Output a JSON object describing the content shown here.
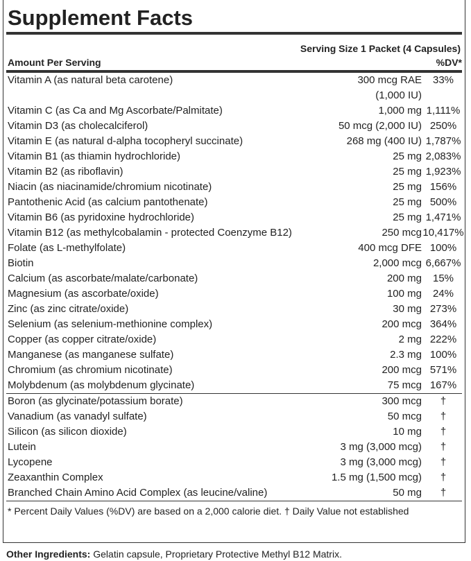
{
  "title": "Supplement Facts",
  "serving_size": "Serving Size 1 Packet (4 Capsules)",
  "header": {
    "amount_per_serving": "Amount Per Serving",
    "dv": "%DV*"
  },
  "nutrients": [
    {
      "name": "Vitamin A (as natural beta carotene)",
      "amount": "300 mcg RAE (1,000 IU)",
      "dv": "33%"
    },
    {
      "name": "Vitamin C (as Ca and Mg Ascorbate/Palmitate)",
      "amount": "1,000 mg",
      "dv": "1,111%"
    },
    {
      "name": "Vitamin D3 (as cholecalciferol)",
      "amount": "50 mcg (2,000 IU)",
      "dv": "250%"
    },
    {
      "name": "Vitamin E (as natural d-alpha tocopheryl succinate)",
      "amount": "268 mg (400 IU)",
      "dv": "1,787%"
    },
    {
      "name": "Vitamin B1 (as thiamin hydrochloride)",
      "amount": "25 mg",
      "dv": "2,083%"
    },
    {
      "name": "Vitamin B2 (as riboflavin)",
      "amount": "25 mg",
      "dv": "1,923%"
    },
    {
      "name": "Niacin (as niacinamide/chromium nicotinate)",
      "amount": "25 mg",
      "dv": "156%"
    },
    {
      "name": "Pantothenic Acid (as calcium pantothenate)",
      "amount": "25 mg",
      "dv": "500%"
    },
    {
      "name": "Vitamin B6 (as pyridoxine hydrochloride)",
      "amount": "25 mg",
      "dv": "1,471%"
    },
    {
      "name": "Vitamin B12 (as methylcobalamin - protected Coenzyme B12)",
      "amount": "250 mcg",
      "dv": "10,417%"
    },
    {
      "name": "Folate (as L-methylfolate)",
      "amount": "400 mcg DFE",
      "dv": "100%"
    },
    {
      "name": "Biotin",
      "amount": "2,000 mcg",
      "dv": "6,667%"
    },
    {
      "name": "Calcium (as ascorbate/malate/carbonate)",
      "amount": "200 mg",
      "dv": "15%"
    },
    {
      "name": "Magnesium (as ascorbate/oxide)",
      "amount": "100 mg",
      "dv": "24%"
    },
    {
      "name": "Zinc (as zinc citrate/oxide)",
      "amount": "30 mg",
      "dv": "273%"
    },
    {
      "name": "Selenium (as selenium-methionine complex)",
      "amount": "200 mcg",
      "dv": "364%"
    },
    {
      "name": "Copper (as copper citrate/oxide)",
      "amount": "2 mg",
      "dv": "222%"
    },
    {
      "name": "Manganese (as manganese sulfate)",
      "amount": "2.3 mg",
      "dv": "100%"
    },
    {
      "name": "Chromium (as chromium nicotinate)",
      "amount": "200 mcg",
      "dv": "571%"
    },
    {
      "name": "Molybdenum (as molybdenum glycinate)",
      "amount": "75 mcg",
      "dv": "167%"
    }
  ],
  "other_nutrients": [
    {
      "name": "Boron (as glycinate/potassium borate)",
      "amount": "300 mcg",
      "dv": "†"
    },
    {
      "name": "Vanadium (as vanadyl sulfate)",
      "amount": "50 mcg",
      "dv": "†"
    },
    {
      "name": "Silicon (as silicon dioxide)",
      "amount": "10 mg",
      "dv": "†"
    },
    {
      "name": "Lutein",
      "amount": "3 mg (3,000 mcg)",
      "dv": "†"
    },
    {
      "name": "Lycopene",
      "amount": "3 mg (3,000 mcg)",
      "dv": "†"
    },
    {
      "name": "Zeaxanthin Complex",
      "amount": "1.5 mg (1,500 mcg)",
      "dv": "†"
    },
    {
      "name": "Branched Chain Amino Acid Complex (as leucine/valine)",
      "amount": "50 mg",
      "dv": "†"
    }
  ],
  "footnote": "* Percent Daily Values (%DV) are based on a 2,000 calorie diet. † Daily Value not established",
  "other_ingredients": {
    "label": "Other Ingredients:",
    "text": "Gelatin capsule, Proprietary Protective Methyl B12 Matrix."
  }
}
